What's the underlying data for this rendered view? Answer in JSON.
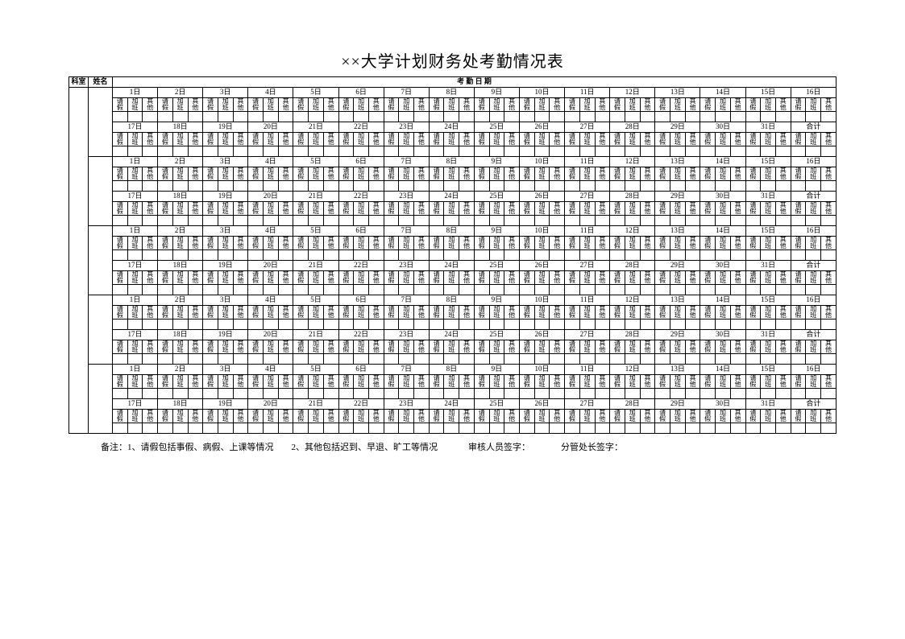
{
  "title": "××大学计划财务处考勤情况表",
  "header": {
    "dept": "科室",
    "name": "姓名",
    "date_span": "考 勤 日 期"
  },
  "subcols": [
    "请假",
    "加班",
    "其他"
  ],
  "row1_days": [
    "1日",
    "2日",
    "3日",
    "4日",
    "5日",
    "6日",
    "7日",
    "8日",
    "9日",
    "10日",
    "11日",
    "12日",
    "13日",
    "14日",
    "15日",
    "16日"
  ],
  "row2_days": [
    "17日",
    "18日",
    "19日",
    "20日",
    "21日",
    "22日",
    "23日",
    "24日",
    "25日",
    "26日",
    "27日",
    "28日",
    "29日",
    "30日",
    "31日",
    "合计"
  ],
  "footer": {
    "note": "备注：1、请假包括事假、病假、上课等情况　　2、其他包括迟到、早退、旷工等情况",
    "sign1": "审核人员签字：",
    "sign2": "分管处长签字："
  },
  "colors": {
    "border": "#000000",
    "bg": "#ffffff",
    "text": "#000000"
  },
  "person_blocks": 5
}
